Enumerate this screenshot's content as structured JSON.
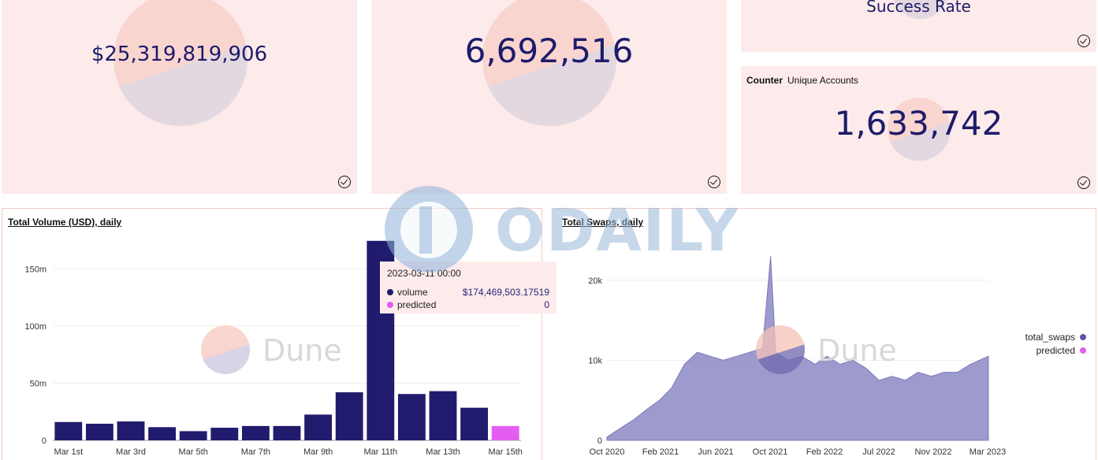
{
  "cards": {
    "volume_total": {
      "value": "$25,319,819,906"
    },
    "swaps_total": {
      "value": "6,692,516"
    },
    "success_rate": {
      "title": "Success Rate"
    },
    "unique_accounts": {
      "type_label": "Counter",
      "title": "Unique Accounts",
      "value": "1,633,742"
    }
  },
  "watermarks": {
    "dune": "Dune",
    "odaily": "ODAILY"
  },
  "volume_chart": {
    "title": "Total Volume (USD), daily",
    "tooltip": {
      "date": "2023-03-11 00:00",
      "rows": [
        {
          "label": "volume",
          "value": "$174,469,503.17519",
          "color": "#211b6d"
        },
        {
          "label": "predicted",
          "value": "0",
          "color": "#e35ef0"
        }
      ]
    }
  },
  "swaps_chart": {
    "title": "Total Swaps, daily",
    "legend": [
      {
        "label": "total_swaps",
        "color": "#5a55a6"
      },
      {
        "label": "predicted",
        "color": "#e35ef0"
      }
    ]
  },
  "chart_data": [
    {
      "type": "bar",
      "title": "Total Volume (USD), daily",
      "categories": [
        "Mar 1st",
        "Mar 2nd",
        "Mar 3rd",
        "Mar 4th",
        "Mar 5th",
        "Mar 6th",
        "Mar 7th",
        "Mar 8th",
        "Mar 9th",
        "Mar 10th",
        "Mar 11th",
        "Mar 12th",
        "Mar 13th",
        "Mar 14th",
        "Mar 15th"
      ],
      "tick_labels": [
        "Mar 1st",
        "Mar 3rd",
        "Mar 5th",
        "Mar 7th",
        "Mar 9th",
        "Mar 11th",
        "Mar 13th",
        "Mar 15th"
      ],
      "series": [
        {
          "name": "volume",
          "color": "#211b6d",
          "values": [
            16000000,
            14500000,
            16500000,
            11500000,
            8000000,
            11000000,
            12500000,
            12500000,
            22500000,
            42000000,
            174469503,
            40500000,
            43000000,
            28500000,
            0
          ]
        },
        {
          "name": "predicted",
          "color": "#e35ef0",
          "values": [
            0,
            0,
            0,
            0,
            0,
            0,
            0,
            0,
            0,
            0,
            0,
            0,
            0,
            0,
            12500000
          ]
        }
      ],
      "ylim": [
        0,
        175000000
      ],
      "yticks": [
        0,
        50000000,
        100000000,
        150000000
      ],
      "ytick_labels": [
        "0",
        "50m",
        "100m",
        "150m"
      ],
      "grid": true
    },
    {
      "type": "area",
      "title": "Total Swaps, daily",
      "x_tick_labels": [
        "Oct 2020",
        "Feb 2021",
        "Jun 2021",
        "Oct 2021",
        "Feb 2022",
        "Jul 2022",
        "Nov 2022",
        "Mar 2023"
      ],
      "x_range": [
        "2020-10-01",
        "2023-03-15"
      ],
      "series": [
        {
          "name": "total_swaps",
          "color": "#8c89c4",
          "x": [
            "2020-10-01",
            "2020-11-01",
            "2020-12-01",
            "2021-01-01",
            "2021-02-01",
            "2021-03-01",
            "2021-04-01",
            "2021-05-01",
            "2021-06-01",
            "2021-07-01",
            "2021-08-01",
            "2021-09-01",
            "2021-10-01",
            "2021-10-20",
            "2021-11-01",
            "2021-12-01",
            "2022-01-01",
            "2022-02-01",
            "2022-03-01",
            "2022-04-01",
            "2022-05-01",
            "2022-06-01",
            "2022-07-01",
            "2022-08-01",
            "2022-09-01",
            "2022-10-01",
            "2022-11-01",
            "2022-12-01",
            "2023-01-01",
            "2023-02-01",
            "2023-03-15"
          ],
          "values": [
            400,
            1500,
            2500,
            3800,
            5000,
            6500,
            9500,
            11000,
            10500,
            10000,
            10500,
            11000,
            11500,
            23000,
            11000,
            10000,
            10500,
            9500,
            10500,
            9500,
            10000,
            9000,
            7500,
            8000,
            7500,
            8500,
            8000,
            8500,
            8500,
            9500,
            10500
          ]
        },
        {
          "name": "predicted",
          "color": "#e35ef0",
          "x": [],
          "values": []
        }
      ],
      "ylim": [
        0,
        25000
      ],
      "yticks": [
        0,
        10000,
        20000
      ],
      "ytick_labels": [
        "0",
        "10k",
        "20k"
      ],
      "grid": true
    }
  ]
}
